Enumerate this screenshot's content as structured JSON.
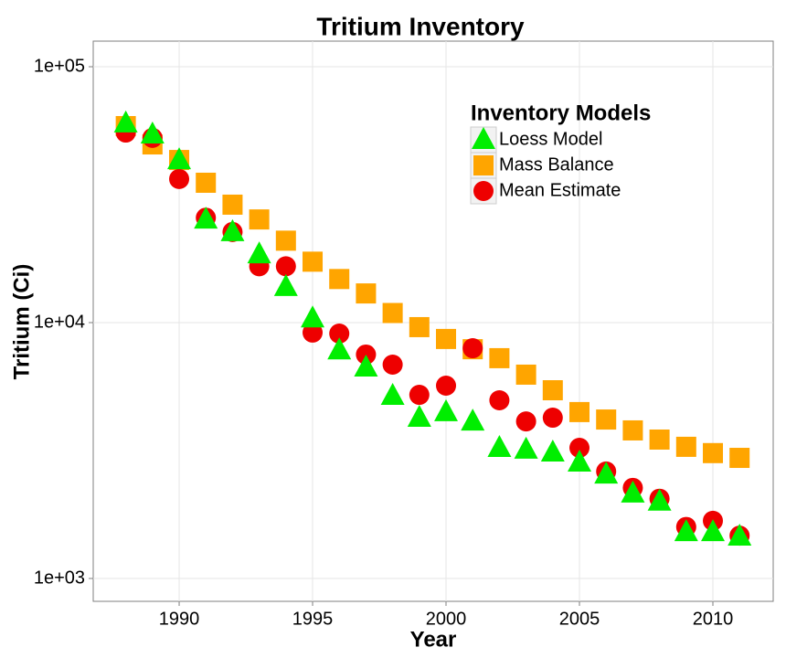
{
  "chart_data": {
    "type": "scatter",
    "title": "Tritium Inventory",
    "x_label": "Year",
    "y_label": "Tritium (Ci)",
    "log_y": true,
    "grid": true,
    "legend_title": "Inventory Models",
    "legend_position": "top-right",
    "xlim": [
      1986.78,
      2012.26
    ],
    "xticks": [
      1990,
      1995,
      2000,
      2005,
      2010
    ],
    "ylim": [
      814,
      125900
    ],
    "yticks": [
      {
        "value": 1000,
        "label": "1e+03"
      },
      {
        "value": 10000,
        "label": "1e+04"
      },
      {
        "value": 100000,
        "label": "1e+05"
      }
    ],
    "x": [
      1988,
      1989,
      1990,
      1991,
      1992,
      1993,
      1994,
      1995,
      1996,
      1997,
      1998,
      1999,
      2000,
      2001,
      2002,
      2003,
      2004,
      2005,
      2006,
      2007,
      2008,
      2009,
      2010,
      2011
    ],
    "series": [
      {
        "name": "Loess Model",
        "color": "#00ee00",
        "shape": "triangle",
        "values": [
          60100,
          54400,
          43200,
          25300,
          22600,
          18500,
          13800,
          10400,
          7800,
          6680,
          5180,
          4250,
          4470,
          4110,
          3240,
          3190,
          3110,
          2840,
          2550,
          2150,
          2000,
          1520,
          1520,
          1460
        ]
      },
      {
        "name": "Mass Balance",
        "color": "#ffa500",
        "shape": "square",
        "values": [
          58600,
          49700,
          43200,
          35200,
          28900,
          25300,
          20900,
          17300,
          14800,
          13000,
          10900,
          9600,
          8630,
          7870,
          7260,
          6260,
          5440,
          4470,
          4180,
          3790,
          3490,
          3270,
          3090,
          2960
        ]
      },
      {
        "name": "Mean Estimate",
        "color": "#ee0000",
        "shape": "circle",
        "values": [
          55300,
          52700,
          36400,
          25700,
          22600,
          16600,
          16600,
          9140,
          9060,
          7500,
          6850,
          5220,
          5670,
          7940,
          4970,
          4110,
          4250,
          3240,
          2620,
          2260,
          2050,
          1590,
          1680,
          1470
        ]
      }
    ]
  }
}
